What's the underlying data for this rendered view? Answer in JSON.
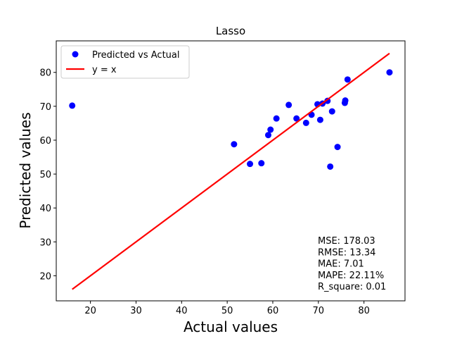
{
  "chart_data": {
    "type": "scatter",
    "title": "Lasso",
    "xlabel": "Actual values",
    "ylabel": "Predicted values",
    "xlim": [
      12.5,
      89.0
    ],
    "ylim": [
      12.6,
      89.3
    ],
    "xticks": [
      20,
      30,
      40,
      50,
      60,
      70,
      80
    ],
    "yticks": [
      20,
      30,
      40,
      50,
      60,
      70,
      80
    ],
    "grid": false,
    "legend_position": "upper left",
    "colors": {
      "points": "#0000ff",
      "line": "#ff0000"
    },
    "series": [
      {
        "name": "Predicted vs Actual",
        "kind": "scatter",
        "points": [
          [
            16.0,
            70.2
          ],
          [
            51.5,
            58.8
          ],
          [
            55.0,
            53.0
          ],
          [
            57.5,
            53.2
          ],
          [
            59.0,
            61.5
          ],
          [
            59.5,
            63.1
          ],
          [
            60.8,
            66.4
          ],
          [
            63.5,
            70.4
          ],
          [
            65.2,
            66.4
          ],
          [
            67.3,
            65.1
          ],
          [
            68.5,
            67.5
          ],
          [
            69.8,
            70.6
          ],
          [
            70.4,
            66.0
          ],
          [
            70.9,
            70.8
          ],
          [
            72.0,
            71.6
          ],
          [
            72.6,
            52.2
          ],
          [
            73.0,
            68.5
          ],
          [
            74.2,
            58.0
          ],
          [
            75.8,
            71.0
          ],
          [
            75.9,
            71.7
          ],
          [
            76.4,
            77.9
          ],
          [
            85.6,
            80.0
          ]
        ]
      },
      {
        "name": "y = x",
        "kind": "line",
        "points": [
          [
            16.0,
            16.0
          ],
          [
            85.6,
            85.6
          ]
        ]
      }
    ],
    "annotations": [
      "MSE: 178.03",
      "RMSE: 13.34",
      "MAE: 7.01",
      "MAPE: 22.11%",
      "R_square: 0.01"
    ]
  }
}
